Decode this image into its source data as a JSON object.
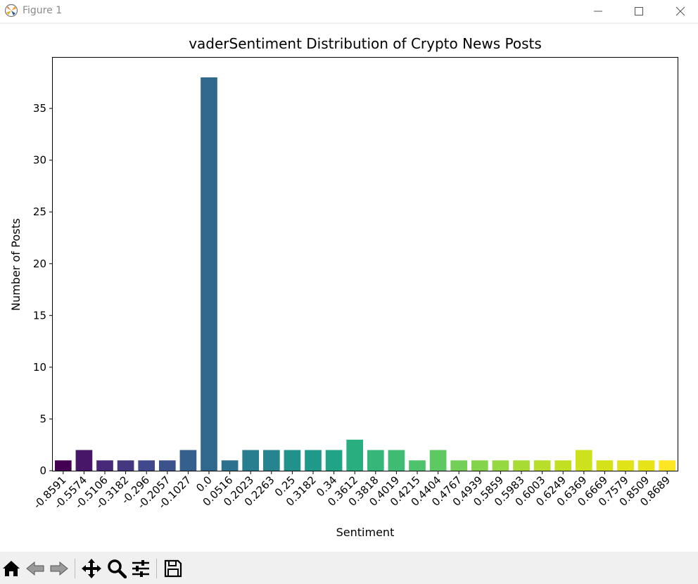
{
  "window": {
    "title": "Figure 1"
  },
  "toolbar": {
    "buttons": [
      {
        "name": "home-button",
        "icon": "home-icon"
      },
      {
        "name": "back-button",
        "icon": "back-arrow-icon"
      },
      {
        "name": "forward-button",
        "icon": "forward-arrow-icon"
      },
      {
        "name": "pan-button",
        "icon": "move-icon"
      },
      {
        "name": "zoom-button",
        "icon": "magnifier-icon"
      },
      {
        "name": "configure-subplots-button",
        "icon": "sliders-icon"
      },
      {
        "name": "save-button",
        "icon": "floppy-disk-icon"
      }
    ]
  },
  "chart_data": {
    "type": "bar",
    "title": "vaderSentiment Distribution of Crypto News Posts",
    "xlabel": "Sentiment",
    "ylabel": "Number of Posts",
    "categories": [
      "-0.8591",
      "-0.5574",
      "-0.5106",
      "-0.3182",
      "-0.296",
      "-0.2057",
      "-0.1027",
      "0.0",
      "0.0516",
      "0.2023",
      "0.2263",
      "0.25",
      "0.3182",
      "0.34",
      "0.3612",
      "0.3818",
      "0.4019",
      "0.4215",
      "0.4404",
      "0.4767",
      "0.4939",
      "0.5859",
      "0.5983",
      "0.6003",
      "0.6249",
      "0.6369",
      "0.6669",
      "0.7579",
      "0.8509",
      "0.8689"
    ],
    "values": [
      1,
      2,
      1,
      1,
      1,
      1,
      2,
      38,
      1,
      2,
      2,
      2,
      2,
      2,
      3,
      2,
      2,
      1,
      2,
      1,
      1,
      1,
      1,
      1,
      1,
      2,
      1,
      1,
      1,
      1
    ],
    "colors": [
      "#440154",
      "#481668",
      "#482878",
      "#45387f",
      "#41488b",
      "#3b528b",
      "#355f8d",
      "#31688e",
      "#2c728e",
      "#287d8e",
      "#25848e",
      "#21918c",
      "#1f998a",
      "#20a386",
      "#29af7f",
      "#35b779",
      "#3fbc73",
      "#4ec36b",
      "#5ec962",
      "#73d056",
      "#84d44b",
      "#95d840",
      "#a8db34",
      "#b8de29",
      "#c2df23",
      "#cde11d",
      "#d5e21a",
      "#dfe318",
      "#e6e419",
      "#fde725"
    ],
    "yticks": [
      0,
      5,
      10,
      15,
      20,
      25,
      30,
      35
    ],
    "ylim": [
      0,
      39.9
    ],
    "grid": false,
    "legend": "none"
  }
}
